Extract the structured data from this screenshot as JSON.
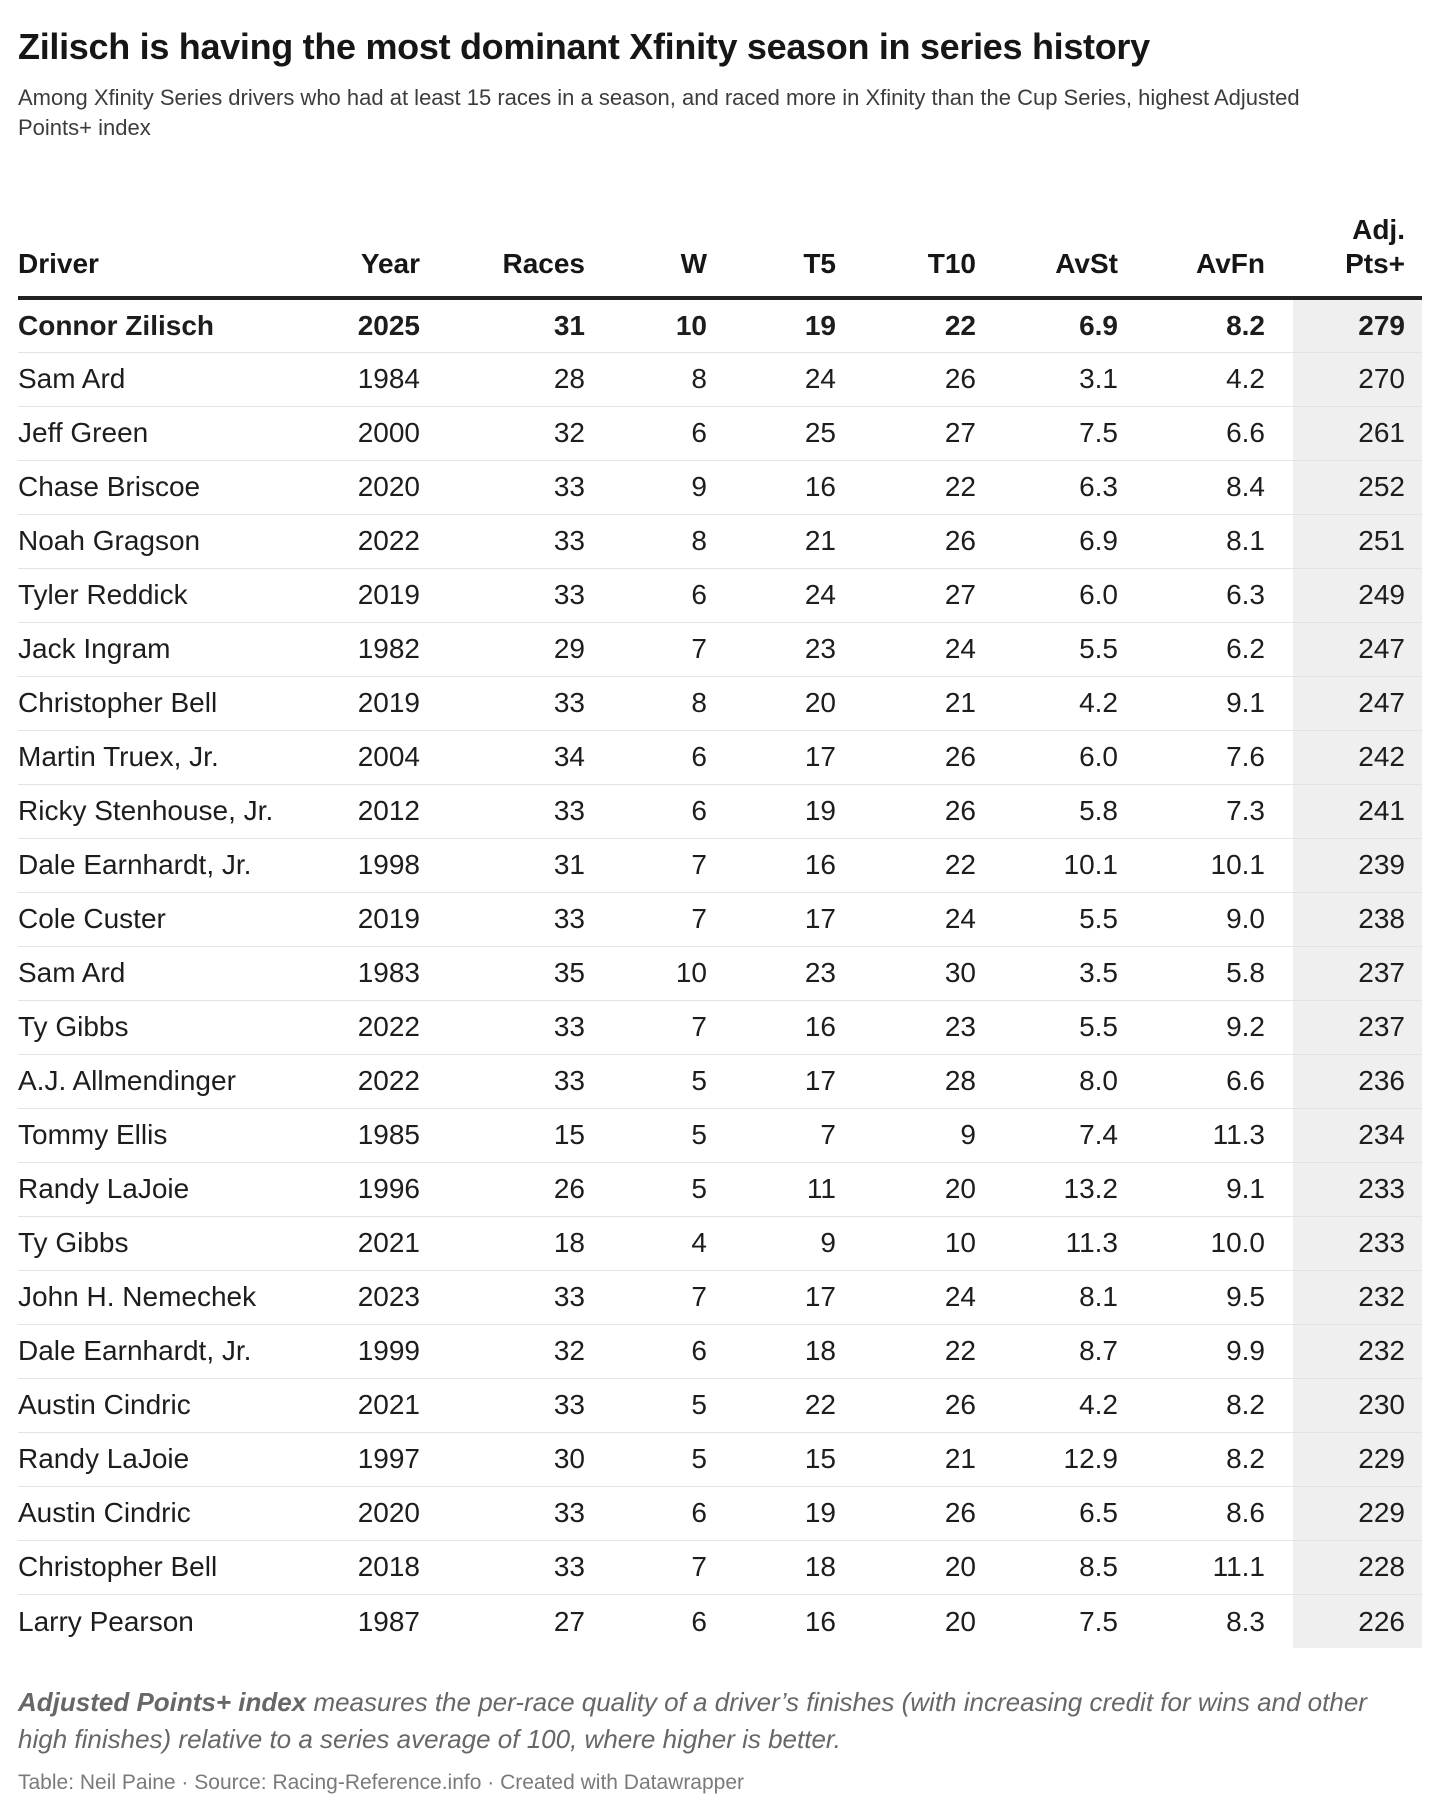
{
  "header": {
    "title": "Zilisch is having the most dominant Xfinity season in series history",
    "subtitle": "Among Xfinity Series drivers who had at least 15 races in a season, and raced more in Xfinity than the Cup Series, highest Adjusted Points+ index"
  },
  "chart_data": {
    "type": "table",
    "title": "Zilisch is having the most dominant Xfinity season in series history",
    "subtitle": "Among Xfinity Series drivers who had at least 15 races in a season, and raced more in Xfinity than the Cup Series, highest Adjusted Points+ index",
    "columns": [
      "Driver",
      "Year",
      "Races",
      "W",
      "T5",
      "T10",
      "AvSt",
      "AvFn",
      "Adj. Pts+"
    ],
    "adj_header_lines": [
      "Adj.",
      "Pts+"
    ],
    "emphasized_row": 0,
    "rows": [
      [
        "Connor Zilisch",
        "2025",
        "31",
        "10",
        "19",
        "22",
        "6.9",
        "8.2",
        "279"
      ],
      [
        "Sam Ard",
        "1984",
        "28",
        "8",
        "24",
        "26",
        "3.1",
        "4.2",
        "270"
      ],
      [
        "Jeff Green",
        "2000",
        "32",
        "6",
        "25",
        "27",
        "7.5",
        "6.6",
        "261"
      ],
      [
        "Chase Briscoe",
        "2020",
        "33",
        "9",
        "16",
        "22",
        "6.3",
        "8.4",
        "252"
      ],
      [
        "Noah Gragson",
        "2022",
        "33",
        "8",
        "21",
        "26",
        "6.9",
        "8.1",
        "251"
      ],
      [
        "Tyler Reddick",
        "2019",
        "33",
        "6",
        "24",
        "27",
        "6.0",
        "6.3",
        "249"
      ],
      [
        "Jack Ingram",
        "1982",
        "29",
        "7",
        "23",
        "24",
        "5.5",
        "6.2",
        "247"
      ],
      [
        "Christopher Bell",
        "2019",
        "33",
        "8",
        "20",
        "21",
        "4.2",
        "9.1",
        "247"
      ],
      [
        "Martin Truex, Jr.",
        "2004",
        "34",
        "6",
        "17",
        "26",
        "6.0",
        "7.6",
        "242"
      ],
      [
        "Ricky Stenhouse, Jr.",
        "2012",
        "33",
        "6",
        "19",
        "26",
        "5.8",
        "7.3",
        "241"
      ],
      [
        "Dale Earnhardt, Jr.",
        "1998",
        "31",
        "7",
        "16",
        "22",
        "10.1",
        "10.1",
        "239"
      ],
      [
        "Cole Custer",
        "2019",
        "33",
        "7",
        "17",
        "24",
        "5.5",
        "9.0",
        "238"
      ],
      [
        "Sam Ard",
        "1983",
        "35",
        "10",
        "23",
        "30",
        "3.5",
        "5.8",
        "237"
      ],
      [
        "Ty Gibbs",
        "2022",
        "33",
        "7",
        "16",
        "23",
        "5.5",
        "9.2",
        "237"
      ],
      [
        "A.J. Allmendinger",
        "2022",
        "33",
        "5",
        "17",
        "28",
        "8.0",
        "6.6",
        "236"
      ],
      [
        "Tommy Ellis",
        "1985",
        "15",
        "5",
        "7",
        "9",
        "7.4",
        "11.3",
        "234"
      ],
      [
        "Randy LaJoie",
        "1996",
        "26",
        "5",
        "11",
        "20",
        "13.2",
        "9.1",
        "233"
      ],
      [
        "Ty Gibbs",
        "2021",
        "18",
        "4",
        "9",
        "10",
        "11.3",
        "10.0",
        "233"
      ],
      [
        "John H. Nemechek",
        "2023",
        "33",
        "7",
        "17",
        "24",
        "8.1",
        "9.5",
        "232"
      ],
      [
        "Dale Earnhardt, Jr.",
        "1999",
        "32",
        "6",
        "18",
        "22",
        "8.7",
        "9.9",
        "232"
      ],
      [
        "Austin Cindric",
        "2021",
        "33",
        "5",
        "22",
        "26",
        "4.2",
        "8.2",
        "230"
      ],
      [
        "Randy LaJoie",
        "1997",
        "30",
        "5",
        "15",
        "21",
        "12.9",
        "8.2",
        "229"
      ],
      [
        "Austin Cindric",
        "2020",
        "33",
        "6",
        "19",
        "26",
        "6.5",
        "8.6",
        "229"
      ],
      [
        "Christopher Bell",
        "2018",
        "33",
        "7",
        "18",
        "20",
        "8.5",
        "11.1",
        "228"
      ],
      [
        "Larry Pearson",
        "1987",
        "27",
        "6",
        "16",
        "20",
        "7.5",
        "8.3",
        "226"
      ]
    ]
  },
  "footer": {
    "note_term": "Adjusted Points+ index",
    "note_text": " measures the per-race quality of a driver’s finishes (with increasing credit for wins and other high finishes) relative to a series average of 100, where higher is better.",
    "attribution": "Table: Neil Paine · Source: Racing-Reference.info · Created with Datawrapper"
  },
  "colors": {
    "accent_shade": "#efefef",
    "header_rule": "#222222",
    "row_divider": "#e3e3e3"
  }
}
